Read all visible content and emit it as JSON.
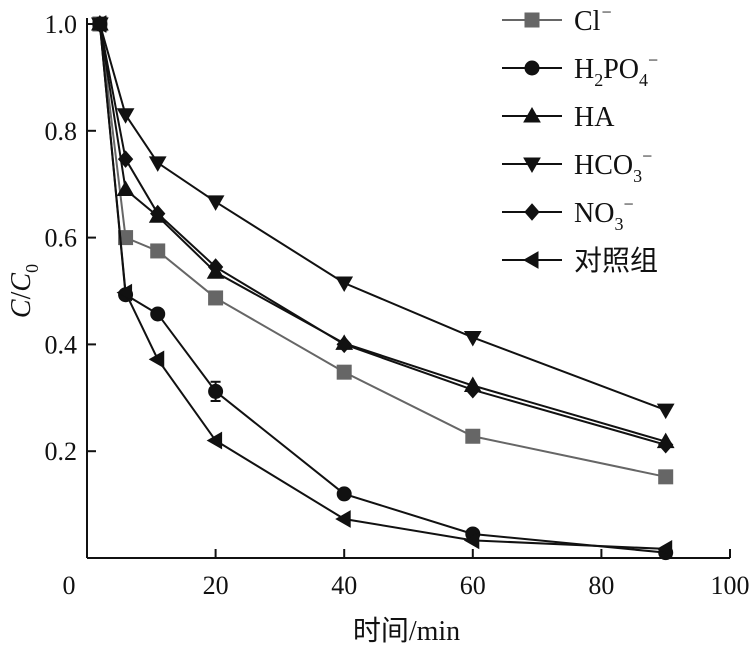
{
  "chart_data": {
    "type": "line",
    "xlabel": "时间/min",
    "ylabel": {
      "main": "C",
      "sep": "/",
      "sub_main": "C",
      "sub": "0"
    },
    "xlim": [
      0,
      100
    ],
    "ylim": [
      0,
      1.0
    ],
    "xticks": [
      0,
      20,
      40,
      60,
      80,
      100
    ],
    "yticks": [
      0.2,
      0.4,
      0.6,
      0.8,
      1.0
    ],
    "xtick_labels": [
      "0",
      "20",
      "40",
      "60",
      "80",
      100
    ],
    "ytick_labels": [
      "0.2",
      "0.4",
      "0.6",
      "0.8",
      "1.0"
    ],
    "grid": false,
    "legend_position": "top-right",
    "series": [
      {
        "name": "Cl⁻",
        "label": {
          "base": "Cl",
          "sub": "",
          "sup": "−"
        },
        "marker": "square",
        "color": "#666666",
        "x": [
          2,
          6,
          11,
          20,
          40,
          60,
          90
        ],
        "y": [
          1.0,
          0.6,
          0.575,
          0.487,
          0.348,
          0.228,
          0.152
        ]
      },
      {
        "name": "H2PO4⁻",
        "label": {
          "base": "H",
          "sub": "2",
          "mid": "PO",
          "sub2": "4",
          "sup": "−"
        },
        "marker": "circle",
        "color": "#111111",
        "x": [
          2,
          6,
          11,
          20,
          40,
          60,
          90
        ],
        "y": [
          1.0,
          0.493,
          0.457,
          0.312,
          0.12,
          0.045,
          0.01
        ],
        "error": [
          0,
          0,
          0,
          0.018,
          0,
          0,
          0
        ]
      },
      {
        "name": "HA",
        "label": {
          "base": "HA",
          "sub": "",
          "sup": ""
        },
        "marker": "triangle-up",
        "color": "#111111",
        "x": [
          2,
          6,
          11,
          20,
          40,
          60,
          90
        ],
        "y": [
          1.0,
          0.69,
          0.64,
          0.535,
          0.402,
          0.323,
          0.218
        ]
      },
      {
        "name": "HCO3⁻",
        "label": {
          "base": "HCO",
          "sub": "3",
          "sup": "−"
        },
        "marker": "triangle-down",
        "color": "#111111",
        "x": [
          2,
          6,
          11,
          20,
          40,
          60,
          90
        ],
        "y": [
          1.0,
          0.83,
          0.74,
          0.667,
          0.515,
          0.413,
          0.277
        ]
      },
      {
        "name": "NO3⁻",
        "label": {
          "base": "NO",
          "sub": "3",
          "sup": "−"
        },
        "marker": "diamond",
        "color": "#111111",
        "x": [
          2,
          6,
          11,
          20,
          40,
          60,
          90
        ],
        "y": [
          1.0,
          0.747,
          0.645,
          0.545,
          0.4,
          0.315,
          0.212
        ]
      },
      {
        "name": "对照组",
        "label": {
          "base": "对照组",
          "sub": "",
          "sup": ""
        },
        "marker": "triangle-left",
        "color": "#111111",
        "x": [
          2,
          6,
          11,
          20,
          40,
          60,
          90
        ],
        "y": [
          1.0,
          0.497,
          0.372,
          0.22,
          0.073,
          0.033,
          0.017
        ]
      }
    ]
  }
}
